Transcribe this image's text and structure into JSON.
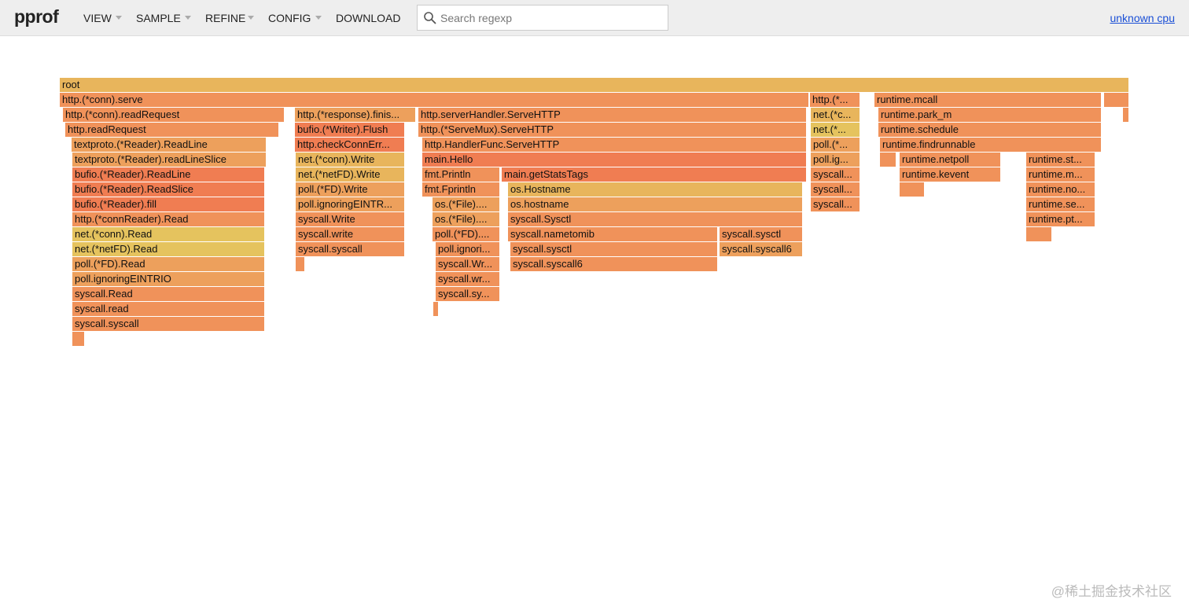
{
  "header": {
    "logo": "pprof",
    "menu": [
      "VIEW",
      "SAMPLE",
      "REFINE",
      "CONFIG",
      "DOWNLOAD"
    ],
    "search_placeholder": "Search regexp",
    "cpu_link": "unknown cpu"
  },
  "flame": {
    "frames": [
      "root",
      "http.(*conn).serve",
      "http.(*...",
      "runtime.mcall",
      "http.(*conn).readRequest",
      "http.(*response).finis...",
      "http.serverHandler.ServeHTTP",
      "net.(*c...",
      "runtime.park_m",
      "http.readRequest",
      "bufio.(*Writer).Flush",
      "http.(*ServeMux).ServeHTTP",
      "net.(*...",
      "runtime.schedule",
      "textproto.(*Reader).ReadLine",
      "http.checkConnErr...",
      "http.HandlerFunc.ServeHTTP",
      "poll.(*...",
      "runtime.findrunnable",
      "textproto.(*Reader).readLineSlice",
      "net.(*conn).Write",
      "main.Hello",
      "poll.ig...",
      "runtime.netpoll",
      "runtime.st...",
      "bufio.(*Reader).ReadLine",
      "net.(*netFD).Write",
      "fmt.Println",
      "main.getStatsTags",
      "syscall...",
      "runtime.kevent",
      "runtime.m...",
      "bufio.(*Reader).ReadSlice",
      "poll.(*FD).Write",
      "fmt.Fprintln",
      "os.Hostname",
      "syscall...",
      "runtime.no...",
      "bufio.(*Reader).fill",
      "poll.ignoringEINTR...",
      "os.(*File)....",
      "os.hostname",
      "syscall...",
      "runtime.se...",
      "http.(*connReader).Read",
      "syscall.Write",
      "os.(*File)....",
      "syscall.Sysctl",
      "runtime.pt...",
      "net.(*conn).Read",
      "syscall.write",
      "poll.(*FD)....",
      "syscall.nametomib",
      "syscall.sysctl",
      "net.(*netFD).Read",
      "syscall.syscall",
      "poll.ignori...",
      "syscall.sysctl",
      "syscall.syscall6",
      "poll.(*FD).Read",
      "syscall.Wr...",
      "syscall.syscall6",
      "poll.ignoringEINTRIO",
      "syscall.wr...",
      "syscall.Read",
      "syscall.sy...",
      "syscall.read",
      "syscall.syscall"
    ]
  },
  "watermark": "@稀土掘金技术社区"
}
